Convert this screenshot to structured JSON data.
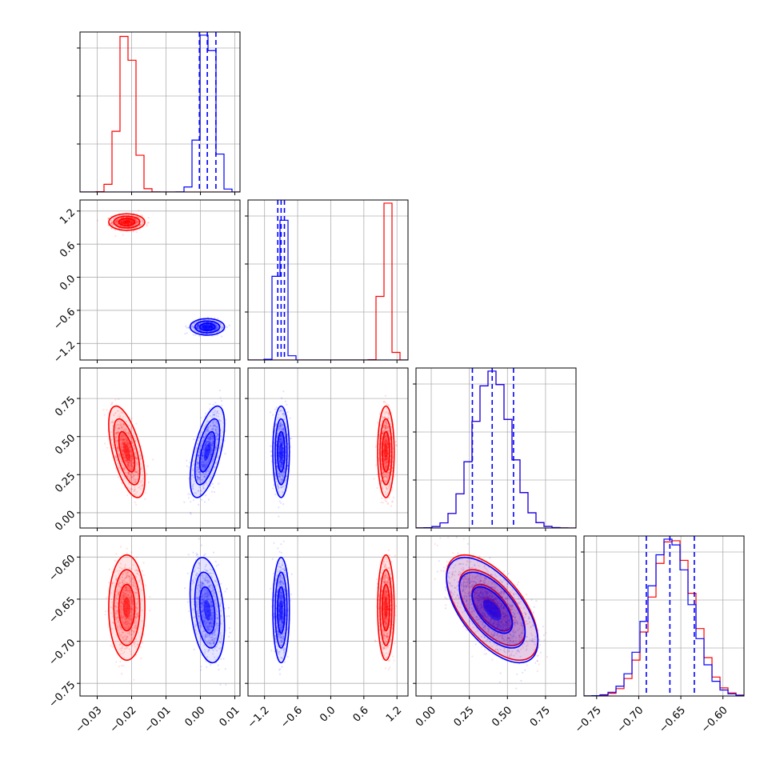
{
  "chart_data": {
    "type": "corner",
    "parameters": [
      {
        "range": [
          -0.035,
          0.0115
        ],
        "ticks": [
          "-0.03",
          "-0.02",
          "-0.01",
          "0.00",
          "0.01"
        ],
        "tick_values": [
          -0.03,
          -0.02,
          -0.01,
          0.0,
          0.01
        ]
      },
      {
        "range": [
          -1.5,
          1.4
        ],
        "ticks": [
          "-1.2",
          "-0.6",
          "0.0",
          "0.6",
          "1.2"
        ],
        "tick_values": [
          -1.2,
          -0.6,
          0.0,
          0.6,
          1.2
        ]
      },
      {
        "range": [
          -0.1,
          0.95
        ],
        "ticks": [
          "0.00",
          "0.25",
          "0.50",
          "0.75"
        ],
        "tick_values": [
          0.0,
          0.25,
          0.5,
          0.75
        ]
      },
      {
        "range": [
          -0.765,
          -0.575
        ],
        "ticks": [
          "-0.75",
          "-0.70",
          "-0.65",
          "-0.60"
        ],
        "tick_values": [
          -0.75,
          -0.7,
          -0.65,
          -0.6
        ]
      }
    ],
    "grid": true,
    "series": [
      {
        "color": "#ff0000",
        "mean": [
          -0.0214,
          1.0,
          0.4,
          -0.66
        ],
        "std": [
          0.0021,
          0.06,
          0.12,
          0.025
        ],
        "correlation": {
          "0-1": 0.0,
          "0-2": -0.6,
          "0-3": 0.0,
          "1-2": 0.0,
          "1-3": 0.0,
          "2-3": -0.6
        },
        "quantiles": null
      },
      {
        "color": "#0000ff",
        "mean": [
          0.002,
          -0.9,
          0.4,
          -0.663
        ],
        "std": [
          0.002,
          0.06,
          0.12,
          0.025
        ],
        "correlation": {
          "0-1": 0.0,
          "0-2": 0.6,
          "0-3": -0.3,
          "1-2": 0.0,
          "1-3": 0.0,
          "2-3": -0.6
        },
        "quantiles": [
          [
            -0.0003,
            0.002,
            0.0045
          ],
          [
            -0.96,
            -0.9,
            -0.84
          ],
          [
            0.27,
            0.4,
            0.54
          ],
          [
            -0.691,
            -0.663,
            -0.634
          ]
        ]
      }
    ]
  }
}
